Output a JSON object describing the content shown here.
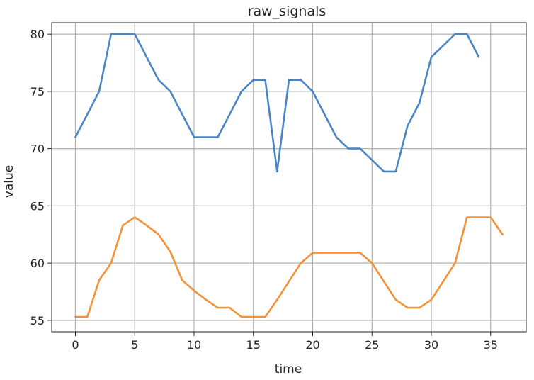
{
  "chart_data": {
    "type": "line",
    "title": "raw_signals",
    "xlabel": "time",
    "ylabel": "value",
    "xlim": [
      -2,
      38
    ],
    "ylim": [
      54,
      81
    ],
    "xticks": [
      0,
      5,
      10,
      15,
      20,
      25,
      30,
      35
    ],
    "yticks": [
      55,
      60,
      65,
      70,
      75,
      80
    ],
    "grid": true,
    "legend": "none",
    "series": [
      {
        "color": "#4a86c5",
        "x": [
          0,
          1,
          2,
          3,
          4,
          5,
          6,
          7,
          8,
          9,
          10,
          11,
          12,
          13,
          14,
          15,
          16,
          17,
          18,
          19,
          20,
          21,
          22,
          23,
          24,
          25,
          26,
          27,
          28,
          29,
          30,
          31,
          32,
          33,
          34
        ],
        "y": [
          71,
          73,
          75,
          80,
          80,
          80,
          78,
          76,
          75,
          73,
          71,
          71,
          71,
          73,
          75,
          76,
          76,
          68,
          76,
          76,
          75,
          73,
          71,
          70,
          70,
          69,
          68,
          68,
          72,
          74,
          78,
          79,
          80,
          80,
          78
        ]
      },
      {
        "color": "#f39237",
        "x": [
          0,
          1,
          2,
          3,
          4,
          5,
          6,
          7,
          8,
          9,
          10,
          11,
          12,
          13,
          14,
          15,
          16,
          17,
          18,
          19,
          20,
          21,
          22,
          23,
          24,
          25,
          26,
          27,
          28,
          29,
          30,
          31,
          32,
          33,
          34,
          35,
          36
        ],
        "y": [
          55.3,
          55.3,
          58.5,
          60,
          63.3,
          64,
          63.3,
          62.5,
          61,
          58.5,
          57.6,
          56.8,
          56.1,
          56.1,
          55.3,
          55.3,
          55.3,
          56.8,
          58.4,
          60,
          60.9,
          60.9,
          60.9,
          60.9,
          60.9,
          60,
          58.4,
          56.8,
          56.1,
          56.1,
          56.8,
          58.4,
          60,
          64,
          64,
          64,
          62.5
        ]
      }
    ]
  }
}
